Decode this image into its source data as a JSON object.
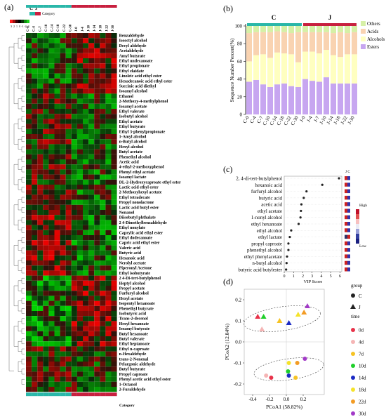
{
  "panel_labels": [
    "(a)",
    "(b)",
    "(c)",
    "(d)"
  ],
  "chart_data": [
    {
      "panel": "(a)",
      "type": "heatmap",
      "legend_title": "Category",
      "legend_groups": [
        "C",
        "J"
      ],
      "scale_ticks": [
        "3",
        "2",
        "1",
        "0",
        "-1",
        "-2",
        "-3"
      ],
      "columns": [
        "C-0",
        "C-4",
        "C-7",
        "C-10",
        "C-14",
        "C-18",
        "C-22",
        "C-30",
        "J-0",
        "J-4",
        "J-7",
        "J-10",
        "J-14",
        "J-18",
        "J-22",
        "J-30"
      ],
      "column_labels_visible": [
        "C-0",
        "C-4",
        "C-7",
        "C-10",
        "C-14",
        "C-18",
        "C-22",
        "C-30",
        "J-0",
        "J-4",
        "J-10",
        "J-14",
        "J-18",
        "J-22",
        "J-30"
      ],
      "rows": [
        "Benzaldehyde",
        "Isooctyl alcohol",
        "Decyl aldehyde",
        "Acetaldehyde",
        "Amyl butyrate",
        "Ethyl undecanoate",
        "Ethyl propionate",
        "Ethyl elaidate",
        "Linoleic acid ethyl ester",
        "Hexadecanoic acid ethyl ester",
        "Succinic acid diethyl",
        "Isoamyl alcohol",
        "Ethanol",
        "2-Methoxy-4-methylphenol",
        "Isoamyl acetate",
        "Ethyl valerate",
        "Isobutyl alcohol",
        "Ethyl acetate",
        "Ethyl butyrate",
        "Ethyl 3-phenylpropionate",
        "1-Amyl alcohol",
        "n-Butyl alcohol",
        "Hexyl alcohol",
        "Butyl acetate",
        "Phenethyl alcohol",
        "Acetic acid",
        "4-ethyl-2-methoxyphenol",
        "Phenyl ethyl acetate",
        "Isoamyl lactate",
        "DL-2-Hydroxycaproate ethyl ester",
        "Lactic acid ethyl ester",
        "2-Methoxyhexyl acetate",
        "Ethyl tetradecate",
        "Propyl nonolactone",
        "Lactic acid butyl ester",
        "Nonanol",
        "Diisobutyl phthalate",
        "2 4-Dimethylbenzaldehyde",
        "Ethyl nonylate",
        "Caprylic acid ethyl ester",
        "Ethyl dodecanoate",
        "Capric acid ethyl ester",
        "Valeric acid",
        "Butyric acid",
        "Hexanoic acid",
        "Nerolyl acetate",
        "Piperonyl Acetone",
        "Ethyl isobutyrate",
        "2 4-Di-tert-butylphenol",
        "Heptyl alcohol",
        "Propyl acetate",
        "Furfuryl alcohol",
        "Hexyl acetate",
        "Isopentyl hexanoate",
        "Phenethyl butyrate",
        "Isobutyric acid",
        "Trans-2-decenol",
        "Hexyl hexanoate",
        "Isoamyl butyrate",
        "Butyl hexanoate",
        "Butyl valerate",
        "Ethyl heptanoate",
        "Ethyl n-caproate",
        "n-Hexaldehyde",
        "trans-2-Nonenal",
        "Pelargonic aldehyde",
        "Butyl butyrate",
        "Propyl caproate",
        "Phenyl acetic acid ethyl ester",
        "1-Octanol",
        "2-Furaldehyde"
      ],
      "bottom_label": "Category",
      "colors": {
        "high": "#ff1f1f",
        "mid": "#000000",
        "low": "#19d019",
        "C": "#2ab7a9",
        "J": "#c8203f"
      }
    },
    {
      "panel": "(b)",
      "type": "bar",
      "stacked": true,
      "ylabel": "Sequence Number Percent(%)",
      "ylim": [
        0,
        100
      ],
      "yticks": [
        "0",
        "20",
        "40",
        "60",
        "80",
        "100"
      ],
      "group_labels": [
        "C",
        "J"
      ],
      "categories": [
        "C-0",
        "C-4",
        "C-7",
        "C-10",
        "C-14",
        "C-18",
        "C-22",
        "C-30",
        "J-0",
        "J-4",
        "J-7",
        "J-10",
        "J-14",
        "J-18",
        "J-22",
        "J-30"
      ],
      "category_labels_visible": [
        "C-0",
        "C-4",
        "C-7",
        "C-10",
        "C-14",
        "C-18",
        "C-22",
        "C-30",
        "J-0",
        "J-4",
        "J-7",
        "J-10",
        "J-14",
        "J-18",
        "J-22",
        "J-30"
      ],
      "series": [
        {
          "name": "Esters",
          "color": "#c7a6f0",
          "values": [
            37,
            39,
            34,
            31,
            34,
            35,
            32,
            31,
            40,
            38,
            37,
            42,
            35,
            35,
            35,
            35
          ]
        },
        {
          "name": "Alcohols",
          "color": "#ffffc0",
          "values": [
            23,
            28,
            34,
            33,
            36,
            34,
            36,
            28,
            31,
            33,
            32,
            31,
            32,
            30,
            33,
            33
          ]
        },
        {
          "name": "Acids",
          "color": "#f9d3b1",
          "values": [
            32,
            26,
            25,
            29,
            24,
            24,
            24,
            34,
            22,
            22,
            24,
            20,
            25,
            28,
            24,
            25
          ]
        },
        {
          "name": "Others",
          "color": "#d6f0a6",
          "values": [
            8,
            7,
            7,
            7,
            6,
            7,
            8,
            7,
            7,
            7,
            7,
            7,
            8,
            7,
            8,
            7
          ]
        }
      ],
      "legend": [
        "Others",
        "Acids",
        "Alcohols",
        "Esters"
      ],
      "group_colors": {
        "C": "#2ab7a9",
        "J": "#c8203f"
      }
    },
    {
      "panel": "(c)",
      "type": "scatter",
      "xlabel": "VIP Score",
      "xticks": [
        "0",
        "1",
        "2",
        "3",
        "4",
        "5",
        "6"
      ],
      "xlim": [
        0,
        6.2
      ],
      "categories": [
        "2, 4-di-tert-butylphenol",
        "hexanoic acid",
        "furfuryl alcohol",
        "butyric acid",
        "acetic acid",
        "ethyl acetate",
        "1-nonyl alcohol",
        "ethyl hexanoate",
        "ethyl alcohol",
        "ethyl lactate",
        "propyl caproate",
        "phenethyl alcohol",
        "ethyl phenylacetate",
        "n-butyl alcohol",
        "butyric acid butylester"
      ],
      "values": [
        5.9,
        4.1,
        2.4,
        2.1,
        1.85,
        1.8,
        1.75,
        1.55,
        0.75,
        0.6,
        0.45,
        0.45,
        0.3,
        0.25,
        0.2
      ],
      "group_header": [
        "J",
        "C"
      ],
      "scale_title_high": "High",
      "scale_title_low": "Low",
      "cell_colors_J": [
        "#c22",
        "#c22",
        "#c22",
        "#c22",
        "#c22",
        "#c22",
        "#c22",
        "#c22",
        "#c22",
        "#336",
        "#c22",
        "#c22",
        "#c22",
        "#c22",
        "#c22"
      ],
      "cell_colors_C": [
        "#33a",
        "#33a",
        "#33a",
        "#33a",
        "#33a",
        "#33a",
        "#33a",
        "#33a",
        "#33a",
        "#c22",
        "#33a",
        "#33a",
        "#33a",
        "#33a",
        "#33a"
      ]
    },
    {
      "panel": "(d)",
      "type": "scatter",
      "xlabel": "PCoA1 (58.82%)",
      "ylabel": "PCoA2 (12.84%)",
      "xlim": [
        -0.5,
        0.45
      ],
      "ylim": [
        -0.25,
        0.25
      ],
      "xticks": [
        "-0.4",
        "-0.2",
        "0.0",
        "0.2"
      ],
      "yticks": [
        "0.2",
        "0.1",
        "0.0",
        "-0.1",
        "-0.2"
      ],
      "legend_group_title": "group",
      "legend_group_items": [
        {
          "label": "C",
          "shape": "circle"
        },
        {
          "label": "J",
          "shape": "triangle"
        }
      ],
      "legend_time_title": "time",
      "legend_time_items": [
        {
          "label": "0d",
          "color": "#e8334a"
        },
        {
          "label": "4d",
          "color": "#f5b5b5"
        },
        {
          "label": "7d",
          "color": "#f6c324"
        },
        {
          "label": "10d",
          "color": "#1fcf2a"
        },
        {
          "label": "14d",
          "color": "#1b2ac4"
        },
        {
          "label": "18d",
          "color": "#f5e32b"
        },
        {
          "label": "22d",
          "color": "#f39c25"
        },
        {
          "label": "30d",
          "color": "#a23ac7"
        }
      ],
      "points": [
        {
          "group": "J",
          "time": "0d",
          "x": -0.34,
          "y": 0.12
        },
        {
          "group": "J",
          "time": "4d",
          "x": -0.29,
          "y": 0.06
        },
        {
          "group": "J",
          "time": "7d",
          "x": -0.08,
          "y": 0.1
        },
        {
          "group": "J",
          "time": "10d",
          "x": -0.27,
          "y": 0.12
        },
        {
          "group": "J",
          "time": "14d",
          "x": 0.03,
          "y": 0.09
        },
        {
          "group": "J",
          "time": "18d",
          "x": 0.14,
          "y": 0.13
        },
        {
          "group": "J",
          "time": "22d",
          "x": 0.21,
          "y": 0.14
        },
        {
          "group": "J",
          "time": "30d",
          "x": 0.25,
          "y": 0.17
        },
        {
          "group": "C",
          "time": "0d",
          "x": -0.18,
          "y": -0.17
        },
        {
          "group": "C",
          "time": "4d",
          "x": -0.24,
          "y": -0.16
        },
        {
          "group": "C",
          "time": "7d",
          "x": 0.11,
          "y": -0.17
        },
        {
          "group": "C",
          "time": "10d",
          "x": 0.02,
          "y": -0.14
        },
        {
          "group": "C",
          "time": "14d",
          "x": 0.03,
          "y": -0.16
        },
        {
          "group": "C",
          "time": "18d",
          "x": 0.03,
          "y": -0.1
        },
        {
          "group": "C",
          "time": "22d",
          "x": 0.13,
          "y": -0.1
        },
        {
          "group": "C",
          "time": "30d",
          "x": 0.22,
          "y": -0.08
        }
      ]
    }
  ]
}
